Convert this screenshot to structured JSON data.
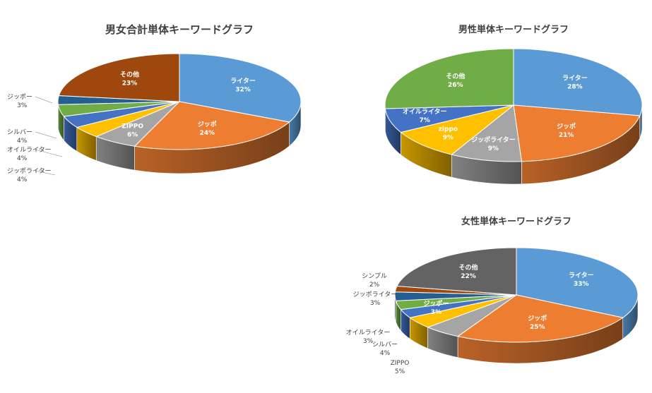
{
  "chart_data": [
    {
      "type": "pie",
      "title": "男女合計単体キーワードグラフ",
      "slices": [
        {
          "label": "ライター",
          "value": 32,
          "pct": "32%",
          "color": "#5B9BD5"
        },
        {
          "label": "ジッポ",
          "value": 24,
          "pct": "24%",
          "color": "#ED7D31"
        },
        {
          "label": "ZIPPO",
          "value": 6,
          "pct": "6%",
          "color": "#A5A5A5"
        },
        {
          "label": "ジッポライター",
          "value": 4,
          "pct": "4%",
          "color": "#FFC000"
        },
        {
          "label": "オイルライター",
          "value": 4,
          "pct": "4%",
          "color": "#4472C4"
        },
        {
          "label": "シルバー",
          "value": 4,
          "pct": "4%",
          "color": "#70AD47"
        },
        {
          "label": "ジッポー",
          "value": 3,
          "pct": "3%",
          "color": "#255E91"
        },
        {
          "label": "その他",
          "value": 23,
          "pct": "23%",
          "color": "#9E480E"
        }
      ]
    },
    {
      "type": "pie",
      "title": "男性単体キーワードグラフ",
      "slices": [
        {
          "label": "ライター",
          "value": 28,
          "pct": "28%",
          "color": "#5B9BD5"
        },
        {
          "label": "ジッポ",
          "value": 21,
          "pct": "21%",
          "color": "#ED7D31"
        },
        {
          "label": "ジッポライター",
          "value": 9,
          "pct": "9%",
          "color": "#A5A5A5"
        },
        {
          "label": "zippo",
          "value": 9,
          "pct": "9%",
          "color": "#FFC000"
        },
        {
          "label": "オイルライター",
          "value": 7,
          "pct": "7%",
          "color": "#4472C4"
        },
        {
          "label": "その他",
          "value": 26,
          "pct": "26%",
          "color": "#70AD47"
        }
      ]
    },
    {
      "type": "pie",
      "title": "女性単体キーワードグラフ",
      "slices": [
        {
          "label": "ライター",
          "value": 33,
          "pct": "33%",
          "color": "#5B9BD5"
        },
        {
          "label": "ジッポ",
          "value": 25,
          "pct": "25%",
          "color": "#ED7D31"
        },
        {
          "label": "ZIPPO",
          "value": 5,
          "pct": "5%",
          "color": "#A5A5A5"
        },
        {
          "label": "シルバー",
          "value": 4,
          "pct": "4%",
          "color": "#FFC000"
        },
        {
          "label": "ジッポー",
          "value": 3,
          "pct": "3%",
          "color": "#4472C4"
        },
        {
          "label": "オイルライター",
          "value": 3,
          "pct": "3%",
          "color": "#70AD47"
        },
        {
          "label": "ジッポライター",
          "value": 3,
          "pct": "3%",
          "color": "#255E91"
        },
        {
          "label": "シンプル",
          "value": 2,
          "pct": "2%",
          "color": "#9E480E"
        },
        {
          "label": "その他",
          "value": 22,
          "pct": "22%",
          "color": "#636363"
        }
      ]
    }
  ]
}
